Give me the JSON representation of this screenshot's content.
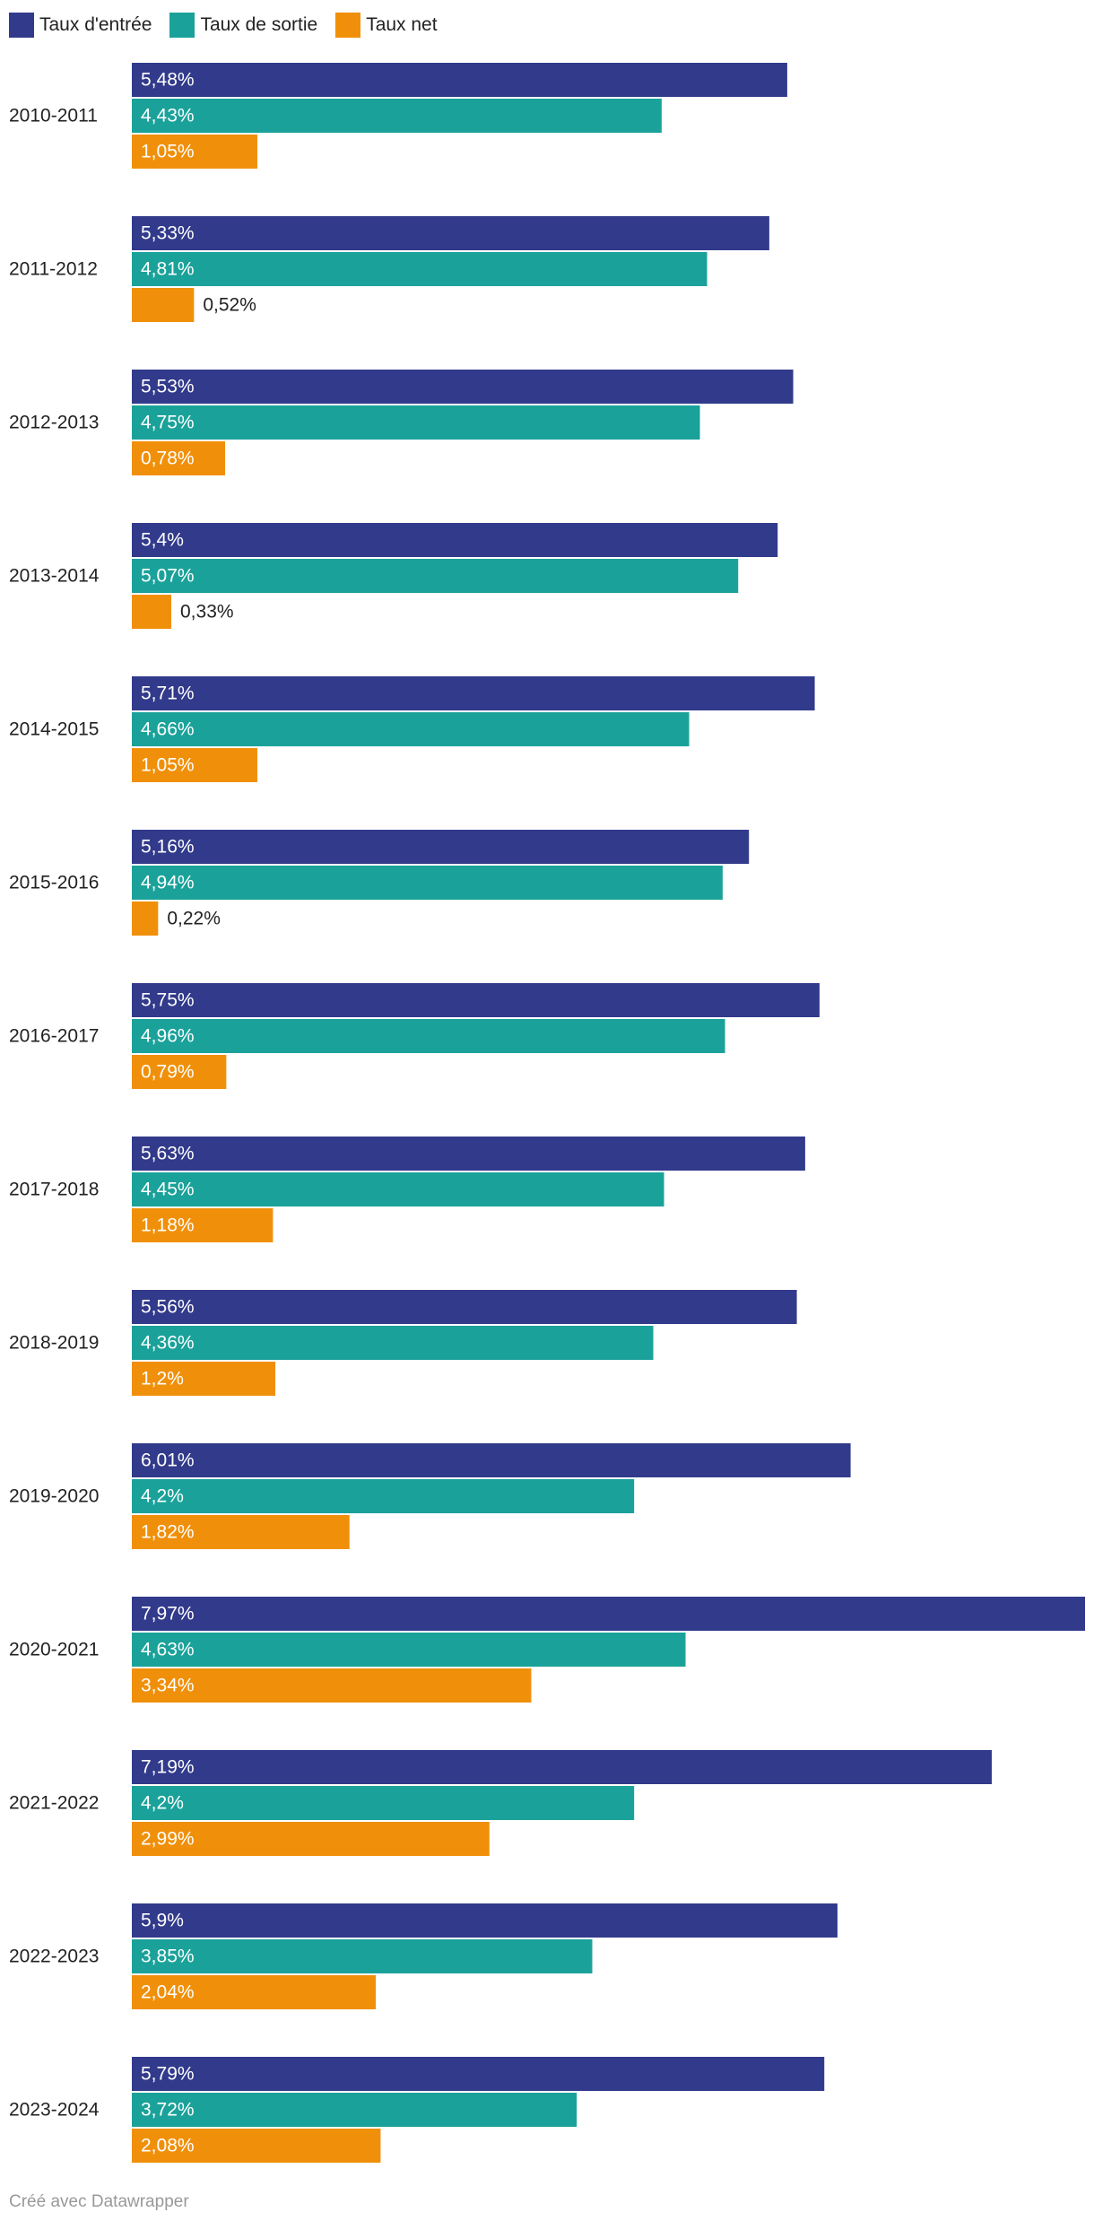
{
  "legend": [
    {
      "label": "Taux d'entrée",
      "color": "#323a8b"
    },
    {
      "label": "Taux de sortie",
      "color": "#1aa29a"
    },
    {
      "label": "Taux net",
      "color": "#f0900a"
    }
  ],
  "chart_data": {
    "type": "bar",
    "orientation": "horizontal",
    "title": "",
    "xlabel": "",
    "ylabel": "",
    "grid": false,
    "legend_position": "top-left",
    "categories": [
      "2010-2011",
      "2011-2012",
      "2012-2013",
      "2013-2014",
      "2014-2015",
      "2015-2016",
      "2016-2017",
      "2017-2018",
      "2018-2019",
      "2019-2020",
      "2020-2021",
      "2021-2022",
      "2022-2023",
      "2023-2024"
    ],
    "xlim": [
      0,
      7.97
    ],
    "series": [
      {
        "name": "Taux d'entrée",
        "color": "#323a8b",
        "values": [
          5.48,
          5.33,
          5.53,
          5.4,
          5.71,
          5.16,
          5.75,
          5.63,
          5.56,
          6.01,
          7.97,
          7.19,
          5.9,
          5.79
        ],
        "labels": [
          "5,48%",
          "5,33%",
          "5,53%",
          "5,4%",
          "5,71%",
          "5,16%",
          "5,75%",
          "5,63%",
          "5,56%",
          "6,01%",
          "7,97%",
          "7,19%",
          "5,9%",
          "5,79%"
        ]
      },
      {
        "name": "Taux de sortie",
        "color": "#1aa29a",
        "values": [
          4.43,
          4.81,
          4.75,
          5.07,
          4.66,
          4.94,
          4.96,
          4.45,
          4.36,
          4.2,
          4.63,
          4.2,
          3.85,
          3.72
        ],
        "labels": [
          "4,43%",
          "4,81%",
          "4,75%",
          "5,07%",
          "4,66%",
          "4,94%",
          "4,96%",
          "4,45%",
          "4,36%",
          "4,2%",
          "4,63%",
          "4,2%",
          "3,85%",
          "3,72%"
        ]
      },
      {
        "name": "Taux net",
        "color": "#f0900a",
        "values": [
          1.05,
          0.52,
          0.78,
          0.33,
          1.05,
          0.22,
          0.79,
          1.18,
          1.2,
          1.82,
          3.34,
          2.99,
          2.04,
          2.08
        ],
        "labels": [
          "1,05%",
          "0,52%",
          "0,78%",
          "0,33%",
          "1,05%",
          "0,22%",
          "0,79%",
          "1,18%",
          "1,2%",
          "1,82%",
          "3,34%",
          "2,99%",
          "2,04%",
          "2,08%"
        ]
      }
    ]
  },
  "footer": {
    "credit": "Créé avec Datawrapper"
  }
}
